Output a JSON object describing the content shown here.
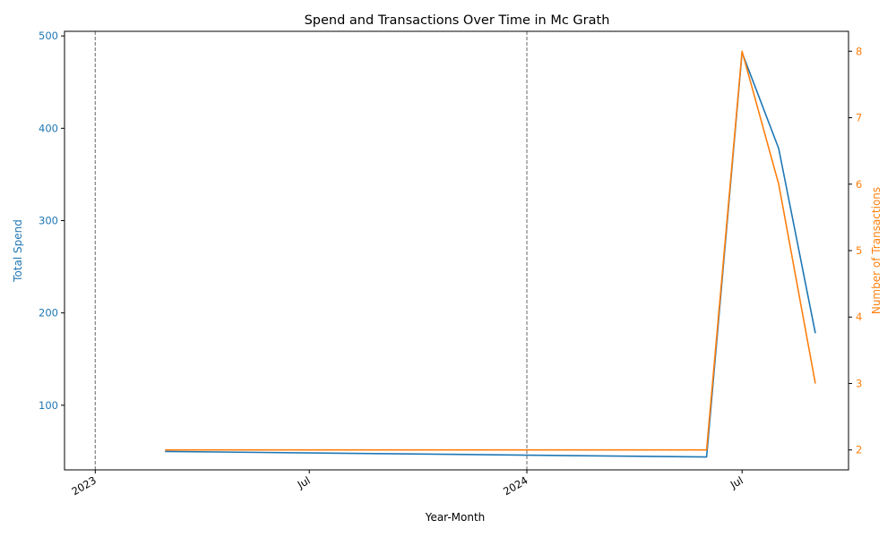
{
  "chart_data": {
    "type": "line",
    "title": "Spend and Transactions Over Time in Mc Grath",
    "xlabel": "Year-Month",
    "ylabel_left": "Total Spend",
    "ylabel_right": "Number of Transactions",
    "x_range": [
      "2022-12-06",
      "2024-09-29"
    ],
    "y_left_range": [
      30,
      505
    ],
    "y_right_range": [
      1.7,
      8.3
    ],
    "x_ticks": [
      {
        "date": "2023-01-01",
        "label": "2023"
      },
      {
        "date": "2023-07-01",
        "label": "Jul"
      },
      {
        "date": "2024-01-01",
        "label": "2024"
      },
      {
        "date": "2024-07-01",
        "label": "Jul"
      }
    ],
    "y_left_ticks": [
      100,
      200,
      300,
      400,
      500
    ],
    "y_right_ticks": [
      2,
      3,
      4,
      5,
      6,
      7,
      8
    ],
    "vertical_markers": [
      "2023-01-01",
      "2024-01-01"
    ],
    "grid": false,
    "series": [
      {
        "axis": "left",
        "color": "#1f77b4",
        "points": [
          {
            "x": "2023-03-01",
            "y": 50
          },
          {
            "x": "2024-06-01",
            "y": 44
          },
          {
            "x": "2024-07-01",
            "y": 482
          },
          {
            "x": "2024-08-01",
            "y": 378
          },
          {
            "x": "2024-09-01",
            "y": 178
          }
        ]
      },
      {
        "axis": "right",
        "color": "#ff7f0e",
        "points": [
          {
            "x": "2023-03-01",
            "y": 2
          },
          {
            "x": "2024-06-01",
            "y": 2
          },
          {
            "x": "2024-07-01",
            "y": 8
          },
          {
            "x": "2024-08-01",
            "y": 6
          },
          {
            "x": "2024-09-01",
            "y": 3
          }
        ]
      }
    ],
    "colors": {
      "left_axis": "#1f77b4",
      "right_axis": "#ff7f0e",
      "marker": "#808080"
    }
  }
}
